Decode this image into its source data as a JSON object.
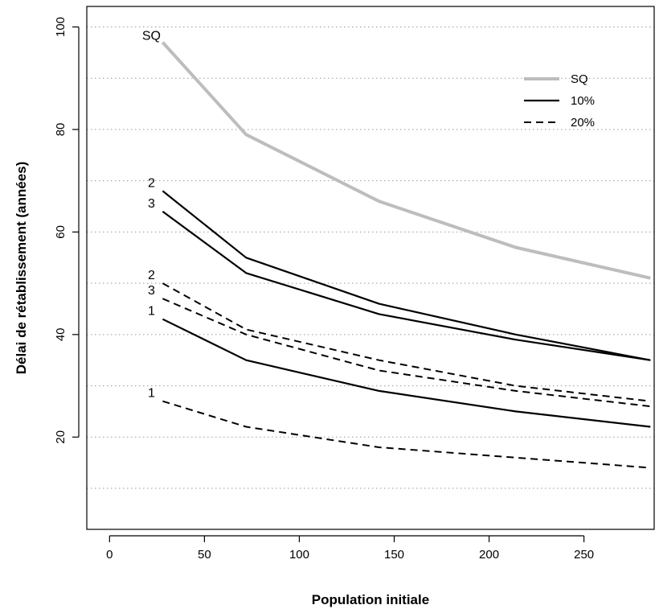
{
  "chart_data": {
    "type": "line",
    "xlabel": "Population initiale",
    "ylabel": "Délai de rétablissement (années)",
    "xlim": [
      -12,
      287
    ],
    "ylim": [
      2,
      104
    ],
    "xticks": [
      0,
      50,
      100,
      150,
      200,
      250
    ],
    "yticks": [
      20,
      40,
      60,
      80,
      100
    ],
    "grid": {
      "horizontal": true,
      "style": "dotted",
      "lines": [
        10,
        20,
        30,
        40,
        50,
        60,
        70,
        80,
        90,
        100
      ]
    },
    "legend": {
      "placement": "top-right",
      "entries": [
        "SQ",
        "10%",
        "20%"
      ]
    },
    "series": [
      {
        "name": "SQ",
        "label": "SQ",
        "style": "solid",
        "color": "#bdbdbd",
        "x": [
          28,
          72,
          142,
          214,
          285
        ],
        "y": [
          97,
          79,
          66,
          57,
          51
        ]
      },
      {
        "name": "10%",
        "label": "2",
        "style": "solid",
        "color": "#000000",
        "x": [
          28,
          72,
          142,
          214,
          285
        ],
        "y": [
          68,
          55,
          46,
          40,
          35
        ]
      },
      {
        "name": "10%",
        "label": "3",
        "style": "solid",
        "color": "#000000",
        "x": [
          28,
          72,
          142,
          214,
          285
        ],
        "y": [
          64,
          52,
          44,
          39,
          35
        ]
      },
      {
        "name": "10%",
        "label": "1",
        "style": "solid",
        "color": "#000000",
        "x": [
          28,
          72,
          142,
          214,
          285
        ],
        "y": [
          43,
          35,
          29,
          25,
          22
        ]
      },
      {
        "name": "20%",
        "label": "2",
        "style": "dashed",
        "color": "#000000",
        "x": [
          28,
          72,
          142,
          214,
          285
        ],
        "y": [
          50,
          41,
          35,
          30,
          27
        ]
      },
      {
        "name": "20%",
        "label": "3",
        "style": "dashed",
        "color": "#000000",
        "x": [
          28,
          72,
          142,
          214,
          285
        ],
        "y": [
          47,
          40,
          33,
          29,
          26
        ]
      },
      {
        "name": "20%",
        "label": "1",
        "style": "dashed",
        "color": "#000000",
        "x": [
          28,
          72,
          142,
          214,
          285
        ],
        "y": [
          27,
          22,
          18,
          16,
          14
        ]
      }
    ]
  }
}
